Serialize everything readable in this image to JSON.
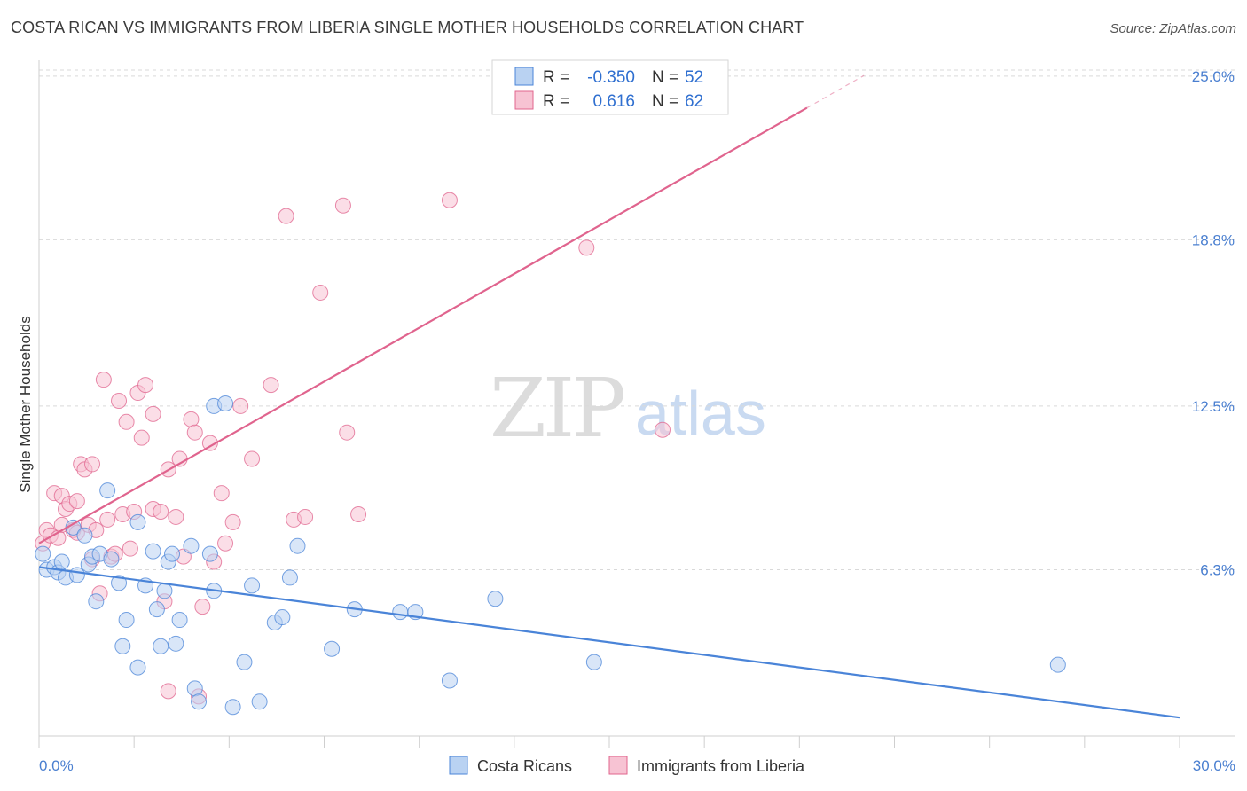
{
  "header": {
    "title": "COSTA RICAN VS IMMIGRANTS FROM LIBERIA SINGLE MOTHER HOUSEHOLDS CORRELATION CHART",
    "source": "Source: ZipAtlas.com"
  },
  "watermark": {
    "part1": "ZIP",
    "part2": "atlas"
  },
  "colors": {
    "blue": "#4a84d8",
    "blue_fill": "#b9d2f2",
    "pink": "#e0648e",
    "pink_fill": "#f7c3d3",
    "tick_text": "#4a7fd0",
    "grid": "#d9d9d9"
  },
  "legend": {
    "rows": [
      {
        "r_label": "R =",
        "r_value": "-0.350",
        "n_label": "N =",
        "n_value": "52"
      },
      {
        "r_label": "R =",
        "r_value": " 0.616",
        "n_label": "N =",
        "n_value": "62"
      }
    ]
  },
  "chart_data": {
    "type": "scatter",
    "title": "COSTA RICAN VS IMMIGRANTS FROM LIBERIA SINGLE MOTHER HOUSEHOLDS CORRELATION CHART",
    "xlabel": "",
    "ylabel": "Single Mother Households",
    "xlim": [
      0,
      30
    ],
    "ylim": [
      0,
      25.6
    ],
    "x_tick_labels": [
      {
        "value": 0,
        "label": "0.0%"
      },
      {
        "value": 30,
        "label": "30.0%"
      }
    ],
    "y_tick_labels": [
      {
        "value": 6.3,
        "label": "6.3%"
      },
      {
        "value": 12.5,
        "label": "12.5%"
      },
      {
        "value": 18.8,
        "label": "18.8%"
      },
      {
        "value": 25.0,
        "label": "25.0%"
      }
    ],
    "grid": true,
    "legend_position": "top-center",
    "series": [
      {
        "name": "Costa Ricans",
        "color": "#4a84d8",
        "trend": {
          "x": [
            0,
            30
          ],
          "y": [
            6.4,
            0.7
          ]
        },
        "points": [
          [
            0.1,
            6.9
          ],
          [
            0.2,
            6.3
          ],
          [
            0.4,
            6.4
          ],
          [
            0.5,
            6.2
          ],
          [
            0.6,
            6.6
          ],
          [
            0.7,
            6.0
          ],
          [
            0.9,
            7.9
          ],
          [
            1.0,
            6.1
          ],
          [
            1.2,
            7.6
          ],
          [
            1.3,
            6.5
          ],
          [
            1.4,
            6.8
          ],
          [
            1.5,
            5.1
          ],
          [
            1.6,
            6.9
          ],
          [
            1.8,
            9.3
          ],
          [
            1.9,
            6.7
          ],
          [
            2.1,
            5.8
          ],
          [
            2.3,
            4.4
          ],
          [
            2.2,
            3.4
          ],
          [
            2.6,
            2.6
          ],
          [
            2.6,
            8.1
          ],
          [
            2.8,
            5.7
          ],
          [
            3.0,
            7.0
          ],
          [
            3.1,
            4.8
          ],
          [
            3.2,
            3.4
          ],
          [
            3.3,
            5.5
          ],
          [
            3.4,
            6.6
          ],
          [
            3.5,
            6.9
          ],
          [
            3.6,
            3.5
          ],
          [
            3.7,
            4.4
          ],
          [
            4.0,
            7.2
          ],
          [
            4.1,
            1.8
          ],
          [
            4.2,
            1.3
          ],
          [
            4.5,
            6.9
          ],
          [
            4.6,
            5.5
          ],
          [
            4.6,
            12.5
          ],
          [
            4.9,
            12.6
          ],
          [
            5.1,
            1.1
          ],
          [
            5.4,
            2.8
          ],
          [
            5.6,
            5.7
          ],
          [
            5.8,
            1.3
          ],
          [
            6.2,
            4.3
          ],
          [
            6.4,
            4.5
          ],
          [
            6.6,
            6.0
          ],
          [
            6.8,
            7.2
          ],
          [
            7.7,
            3.3
          ],
          [
            8.3,
            4.8
          ],
          [
            9.5,
            4.7
          ],
          [
            9.9,
            4.7
          ],
          [
            10.8,
            2.1
          ],
          [
            12.0,
            5.2
          ],
          [
            14.6,
            2.8
          ],
          [
            26.8,
            2.7
          ]
        ]
      },
      {
        "name": "Immigrants from Liberia",
        "color": "#e0648e",
        "trend": {
          "x": [
            0,
            20.2
          ],
          "y": [
            7.3,
            23.8
          ]
        },
        "points": [
          [
            0.1,
            7.3
          ],
          [
            0.2,
            7.8
          ],
          [
            0.3,
            7.6
          ],
          [
            0.4,
            9.2
          ],
          [
            0.5,
            7.5
          ],
          [
            0.6,
            9.1
          ],
          [
            0.6,
            8.0
          ],
          [
            0.7,
            8.6
          ],
          [
            0.8,
            8.8
          ],
          [
            0.9,
            7.8
          ],
          [
            1.0,
            7.7
          ],
          [
            1.0,
            8.9
          ],
          [
            1.1,
            10.3
          ],
          [
            1.2,
            10.1
          ],
          [
            1.3,
            8.0
          ],
          [
            1.4,
            10.3
          ],
          [
            1.4,
            6.7
          ],
          [
            1.5,
            7.8
          ],
          [
            1.6,
            5.4
          ],
          [
            1.7,
            13.5
          ],
          [
            1.8,
            8.2
          ],
          [
            1.9,
            6.8
          ],
          [
            2.0,
            6.9
          ],
          [
            2.1,
            12.7
          ],
          [
            2.2,
            8.4
          ],
          [
            2.3,
            11.9
          ],
          [
            2.4,
            7.1
          ],
          [
            2.5,
            8.5
          ],
          [
            2.6,
            13.0
          ],
          [
            2.7,
            11.3
          ],
          [
            2.8,
            13.3
          ],
          [
            3.0,
            12.2
          ],
          [
            3.0,
            8.6
          ],
          [
            3.2,
            8.5
          ],
          [
            3.3,
            5.1
          ],
          [
            3.4,
            10.1
          ],
          [
            3.4,
            1.7
          ],
          [
            3.6,
            8.3
          ],
          [
            3.7,
            10.5
          ],
          [
            3.8,
            6.8
          ],
          [
            4.0,
            12.0
          ],
          [
            4.1,
            11.5
          ],
          [
            4.2,
            1.5
          ],
          [
            4.3,
            4.9
          ],
          [
            4.5,
            11.1
          ],
          [
            4.6,
            6.6
          ],
          [
            4.8,
            9.2
          ],
          [
            4.9,
            7.3
          ],
          [
            5.1,
            8.1
          ],
          [
            5.3,
            12.5
          ],
          [
            5.6,
            10.5
          ],
          [
            6.1,
            13.3
          ],
          [
            6.5,
            19.7
          ],
          [
            6.7,
            8.2
          ],
          [
            7.0,
            8.3
          ],
          [
            7.4,
            16.8
          ],
          [
            8.0,
            20.1
          ],
          [
            8.1,
            11.5
          ],
          [
            8.4,
            8.4
          ],
          [
            10.8,
            20.3
          ],
          [
            14.4,
            18.5
          ],
          [
            16.4,
            11.6
          ]
        ]
      }
    ]
  },
  "bottom_legend": {
    "items": [
      {
        "label": "Costa Ricans"
      },
      {
        "label": "Immigrants from Liberia"
      }
    ]
  }
}
